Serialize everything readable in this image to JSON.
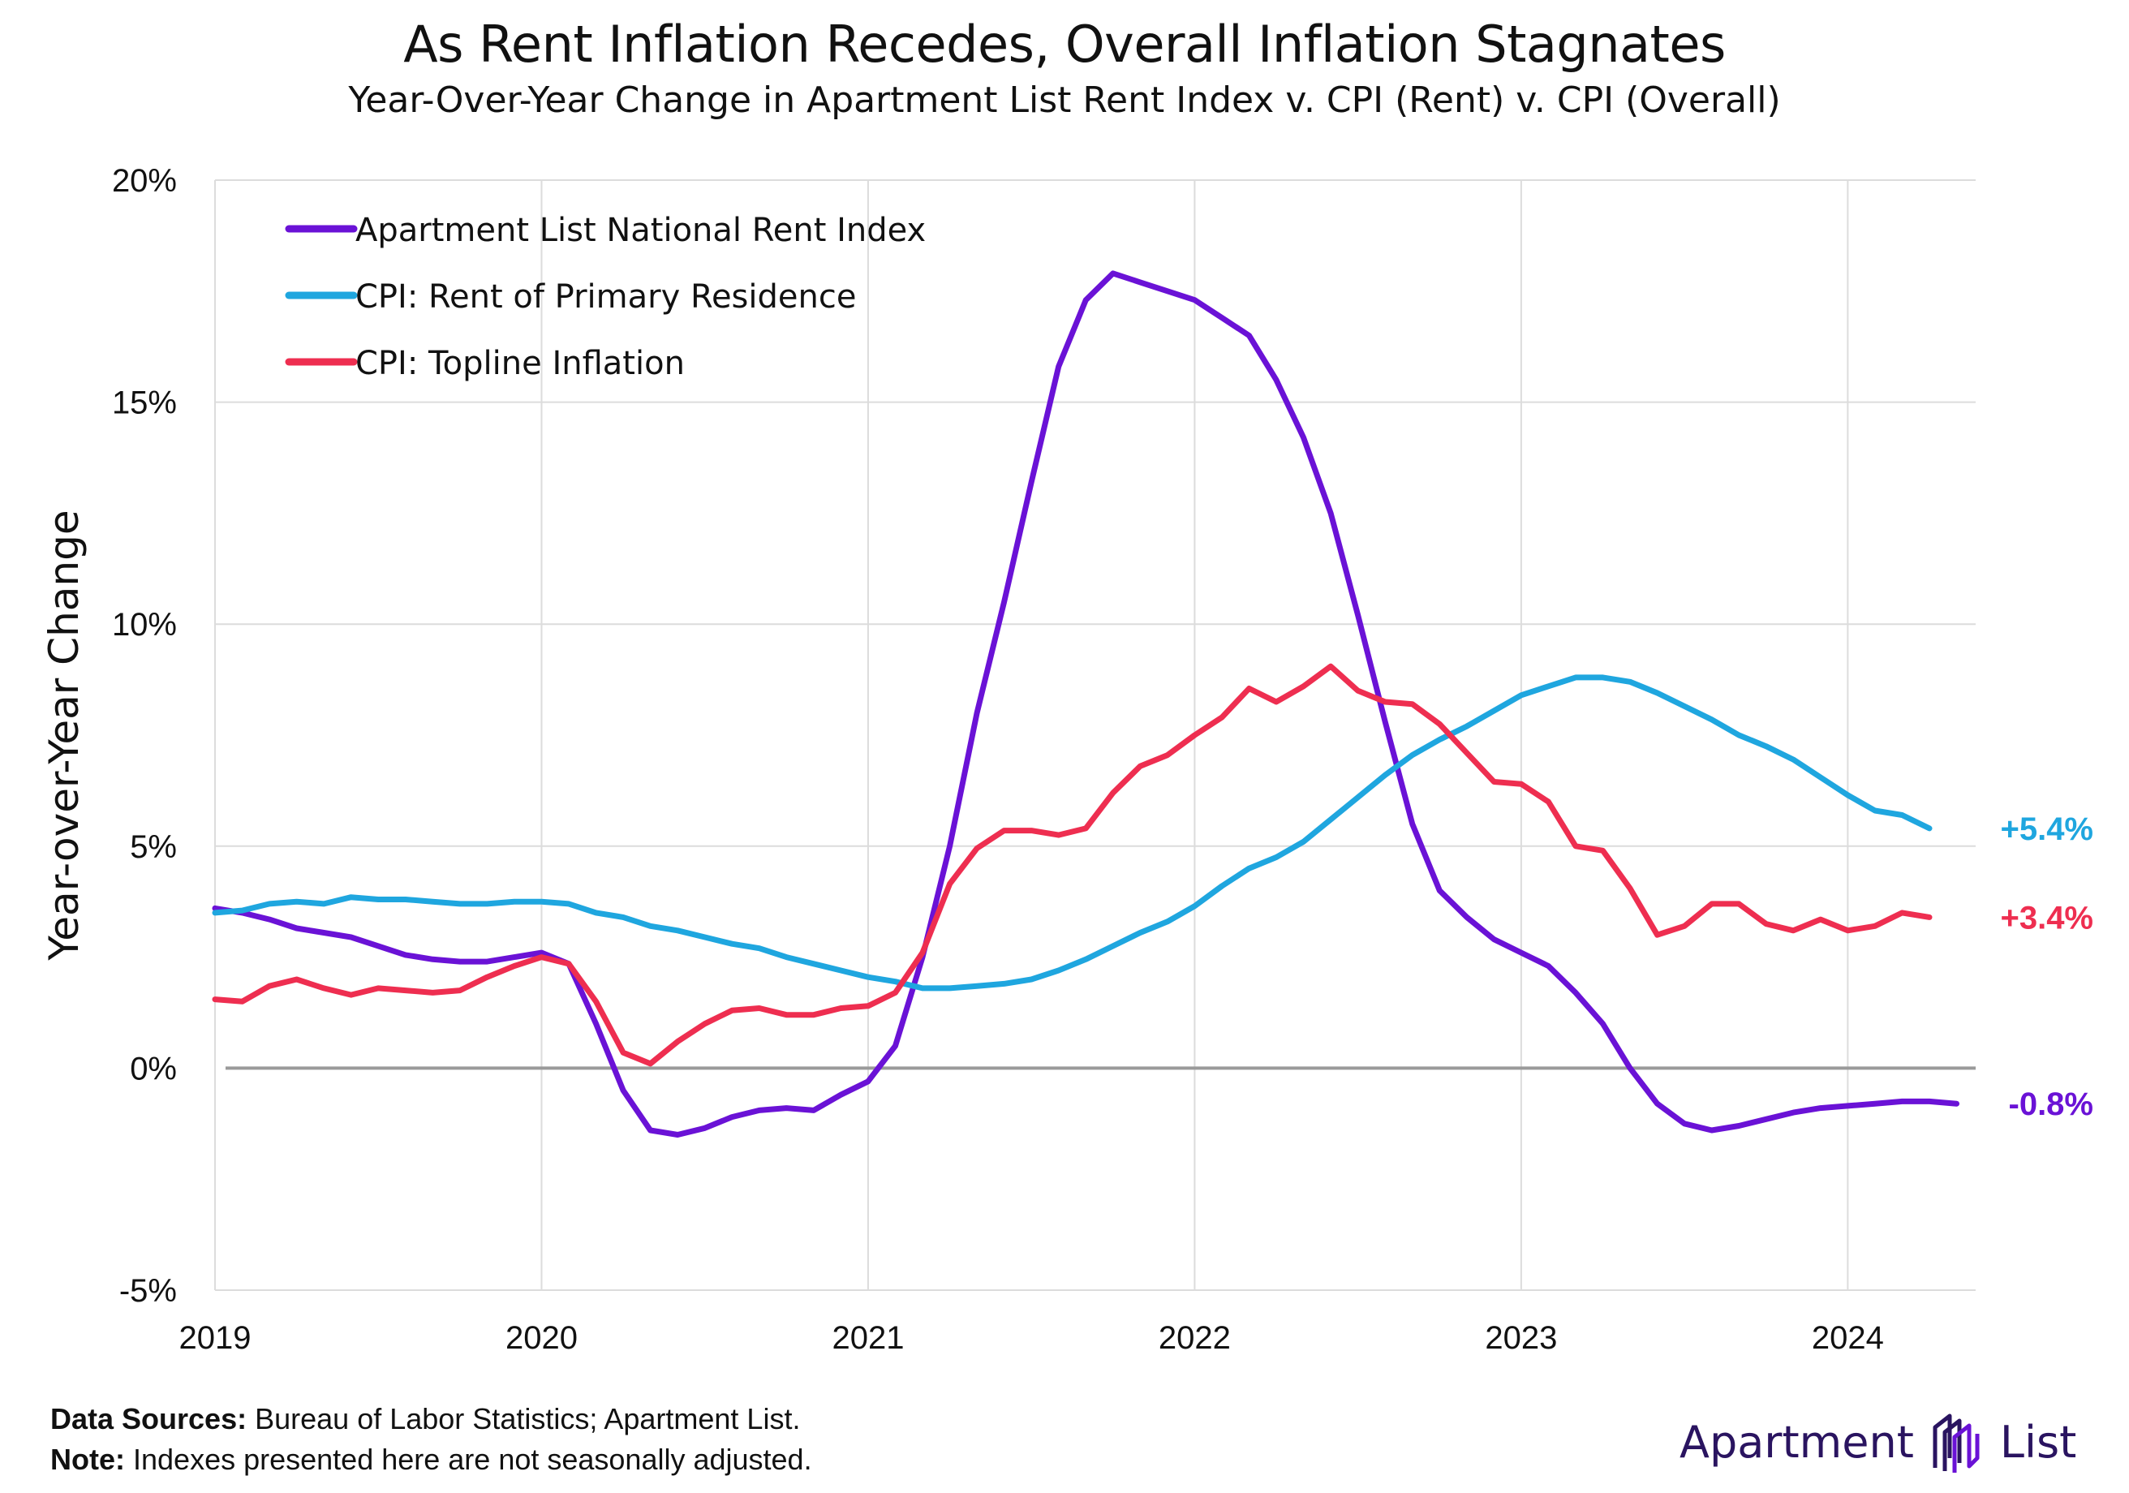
{
  "header": {
    "title": "As Rent Inflation Recedes, Overall Inflation Stagnates",
    "subtitle": "Year-Over-Year Change in Apartment List Rent Index v. CPI (Rent) v. CPI (Overall)"
  },
  "chart_data": {
    "type": "line",
    "title": "As Rent Inflation Recedes, Overall Inflation Stagnates",
    "subtitle": "Year-Over-Year Change in Apartment List Rent Index v. CPI (Rent) v. CPI (Overall)",
    "xlabel": "",
    "ylabel": "Year-over-Year Change",
    "xlim": [
      "2019-01",
      "2024-05"
    ],
    "x_ticks": [
      "2019",
      "2020",
      "2021",
      "2022",
      "2023",
      "2024"
    ],
    "ylim": [
      -5,
      20
    ],
    "y_ticks": [
      "-5%",
      "0%",
      "5%",
      "10%",
      "15%",
      "20%"
    ],
    "y_tick_values": [
      -5,
      0,
      5,
      10,
      15,
      20
    ],
    "grid": true,
    "legend_position": "top-left",
    "zero_line": true,
    "series": [
      {
        "name": "Apartment List National Rent Index",
        "color": "#6a12d6",
        "end_label": "-0.8%",
        "x": [
          "2019-01",
          "2019-02",
          "2019-03",
          "2019-04",
          "2019-05",
          "2019-06",
          "2019-07",
          "2019-08",
          "2019-09",
          "2019-10",
          "2019-11",
          "2019-12",
          "2020-01",
          "2020-02",
          "2020-03",
          "2020-04",
          "2020-05",
          "2020-06",
          "2020-07",
          "2020-08",
          "2020-09",
          "2020-10",
          "2020-11",
          "2020-12",
          "2021-01",
          "2021-02",
          "2021-03",
          "2021-04",
          "2021-05",
          "2021-06",
          "2021-07",
          "2021-08",
          "2021-09",
          "2021-10",
          "2021-11",
          "2021-12",
          "2022-01",
          "2022-02",
          "2022-03",
          "2022-04",
          "2022-05",
          "2022-06",
          "2022-07",
          "2022-08",
          "2022-09",
          "2022-10",
          "2022-11",
          "2022-12",
          "2023-01",
          "2023-02",
          "2023-03",
          "2023-04",
          "2023-05",
          "2023-06",
          "2023-07",
          "2023-08",
          "2023-09",
          "2023-10",
          "2023-11",
          "2023-12",
          "2024-01",
          "2024-02",
          "2024-03",
          "2024-04",
          "2024-05"
        ],
        "values": [
          3.6,
          3.5,
          3.35,
          3.15,
          3.05,
          2.95,
          2.75,
          2.55,
          2.45,
          2.4,
          2.4,
          2.5,
          2.6,
          2.35,
          1.0,
          -0.5,
          -1.4,
          -1.5,
          -1.35,
          -1.1,
          -0.95,
          -0.9,
          -0.95,
          -0.6,
          -0.3,
          0.5,
          2.5,
          5.0,
          8.0,
          10.5,
          13.2,
          15.8,
          17.3,
          17.9,
          17.7,
          17.5,
          17.3,
          16.9,
          16.5,
          15.5,
          14.2,
          12.5,
          10.2,
          7.8,
          5.5,
          4.0,
          3.4,
          2.9,
          2.6,
          2.3,
          1.7,
          1.0,
          0.0,
          -0.8,
          -1.25,
          -1.4,
          -1.3,
          -1.15,
          -1.0,
          -0.9,
          -0.85,
          -0.8,
          -0.75,
          -0.75,
          -0.8
        ]
      },
      {
        "name": "CPI: Rent of Primary Residence",
        "color": "#1fa6df",
        "end_label": "+5.4%",
        "x": [
          "2019-01",
          "2019-02",
          "2019-03",
          "2019-04",
          "2019-05",
          "2019-06",
          "2019-07",
          "2019-08",
          "2019-09",
          "2019-10",
          "2019-11",
          "2019-12",
          "2020-01",
          "2020-02",
          "2020-03",
          "2020-04",
          "2020-05",
          "2020-06",
          "2020-07",
          "2020-08",
          "2020-09",
          "2020-10",
          "2020-11",
          "2020-12",
          "2021-01",
          "2021-02",
          "2021-03",
          "2021-04",
          "2021-05",
          "2021-06",
          "2021-07",
          "2021-08",
          "2021-09",
          "2021-10",
          "2021-11",
          "2021-12",
          "2022-01",
          "2022-02",
          "2022-03",
          "2022-04",
          "2022-05",
          "2022-06",
          "2022-07",
          "2022-08",
          "2022-09",
          "2022-10",
          "2022-11",
          "2022-12",
          "2023-01",
          "2023-02",
          "2023-03",
          "2023-04",
          "2023-05",
          "2023-06",
          "2023-07",
          "2023-08",
          "2023-09",
          "2023-10",
          "2023-11",
          "2023-12",
          "2024-01",
          "2024-02",
          "2024-03",
          "2024-04"
        ],
        "values": [
          3.5,
          3.55,
          3.7,
          3.75,
          3.7,
          3.85,
          3.8,
          3.8,
          3.75,
          3.7,
          3.7,
          3.75,
          3.75,
          3.7,
          3.5,
          3.4,
          3.2,
          3.1,
          2.95,
          2.8,
          2.7,
          2.5,
          2.35,
          2.2,
          2.05,
          1.95,
          1.8,
          1.8,
          1.85,
          1.9,
          2.0,
          2.2,
          2.45,
          2.75,
          3.05,
          3.3,
          3.65,
          4.1,
          4.5,
          4.75,
          5.1,
          5.6,
          6.1,
          6.6,
          7.05,
          7.4,
          7.7,
          8.05,
          8.4,
          8.6,
          8.8,
          8.8,
          8.7,
          8.45,
          8.15,
          7.85,
          7.5,
          7.25,
          6.95,
          6.55,
          6.15,
          5.8,
          5.7,
          5.4
        ]
      },
      {
        "name": "CPI: Topline Inflation",
        "color": "#ee2e50",
        "end_label": "+3.4%",
        "x": [
          "2019-01",
          "2019-02",
          "2019-03",
          "2019-04",
          "2019-05",
          "2019-06",
          "2019-07",
          "2019-08",
          "2019-09",
          "2019-10",
          "2019-11",
          "2019-12",
          "2020-01",
          "2020-02",
          "2020-03",
          "2020-04",
          "2020-05",
          "2020-06",
          "2020-07",
          "2020-08",
          "2020-09",
          "2020-10",
          "2020-11",
          "2020-12",
          "2021-01",
          "2021-02",
          "2021-03",
          "2021-04",
          "2021-05",
          "2021-06",
          "2021-07",
          "2021-08",
          "2021-09",
          "2021-10",
          "2021-11",
          "2021-12",
          "2022-01",
          "2022-02",
          "2022-03",
          "2022-04",
          "2022-05",
          "2022-06",
          "2022-07",
          "2022-08",
          "2022-09",
          "2022-10",
          "2022-11",
          "2022-12",
          "2023-01",
          "2023-02",
          "2023-03",
          "2023-04",
          "2023-05",
          "2023-06",
          "2023-07",
          "2023-08",
          "2023-09",
          "2023-10",
          "2023-11",
          "2023-12",
          "2024-01",
          "2024-02",
          "2024-03",
          "2024-04"
        ],
        "values": [
          1.55,
          1.5,
          1.85,
          2.0,
          1.8,
          1.65,
          1.8,
          1.75,
          1.7,
          1.75,
          2.05,
          2.3,
          2.5,
          2.35,
          1.5,
          0.35,
          0.1,
          0.6,
          1.0,
          1.3,
          1.35,
          1.2,
          1.2,
          1.35,
          1.4,
          1.7,
          2.6,
          4.15,
          4.95,
          5.35,
          5.35,
          5.25,
          5.4,
          6.2,
          6.8,
          7.05,
          7.5,
          7.9,
          8.55,
          8.25,
          8.6,
          9.05,
          8.5,
          8.25,
          8.2,
          7.75,
          7.1,
          6.45,
          6.4,
          6.0,
          5.0,
          4.9,
          4.05,
          3.0,
          3.2,
          3.7,
          3.7,
          3.25,
          3.1,
          3.35,
          3.1,
          3.2,
          3.5,
          3.4
        ]
      }
    ]
  },
  "footer": {
    "sources_label": "Data Sources:",
    "sources_text": "Bureau of Labor Statistics; Apartment List.",
    "note_label": "Note:",
    "note_text": "Indexes presented here are not seasonally adjusted."
  },
  "brand": {
    "word1": "Apartment",
    "word2": "List",
    "color": "#2a1460",
    "accent": "#6a12d6"
  }
}
